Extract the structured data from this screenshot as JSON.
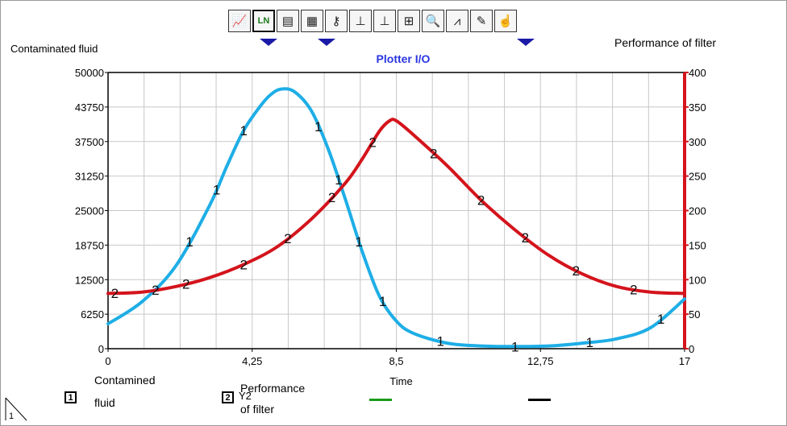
{
  "toolbar": {
    "buttons": [
      {
        "icon": "line-chart-icon",
        "glyph": "📈"
      },
      {
        "icon": "ln-scale-icon",
        "glyph": "LN"
      },
      {
        "icon": "legend-icon",
        "glyph": "▤"
      },
      {
        "icon": "grid-icon",
        "glyph": "▦"
      },
      {
        "icon": "key-icon",
        "glyph": "⚷"
      },
      {
        "icon": "x-axis-icon",
        "glyph": "⊥"
      },
      {
        "icon": "y-axis-icon",
        "glyph": "⊥"
      },
      {
        "icon": "xy-axis-icon",
        "glyph": "⊞"
      },
      {
        "icon": "zoom-icon",
        "glyph": "🔍"
      },
      {
        "icon": "compass-icon",
        "glyph": "⩘"
      },
      {
        "icon": "pencil-icon",
        "glyph": "✎"
      },
      {
        "icon": "hand-icon",
        "glyph": "☝"
      }
    ]
  },
  "labels": {
    "left_axis_title": "Contaminated fluid",
    "right_axis_title": "Performance of filter"
  },
  "legend": {
    "items": [
      {
        "number": "1",
        "label_line1": "Contamined",
        "label_line2": "fluid",
        "color": "#1eaee6"
      },
      {
        "number": "2",
        "label_line1": "Performance",
        "label_line2": "of filter",
        "overlay": "Y2",
        "color": "#d4141c"
      }
    ]
  },
  "corner_marker": "1",
  "chart_data": {
    "type": "line",
    "title": "Plotter I/O",
    "xlabel": "Time",
    "ylabel": "Contaminated fluid",
    "y2label": "Performance of filter",
    "xlim": [
      0,
      17
    ],
    "ylim": [
      0,
      50000
    ],
    "y2lim": [
      0,
      400
    ],
    "x_ticks": [
      "0",
      "4,25",
      "8,5",
      "12,75",
      "17"
    ],
    "y_ticks": [
      "0",
      "6250",
      "12500",
      "18750",
      "25000",
      "31250",
      "37500",
      "43750",
      "50000"
    ],
    "y2_ticks": [
      "0",
      "50",
      "100",
      "150",
      "200",
      "250",
      "300",
      "350",
      "400"
    ],
    "grid": true,
    "series": [
      {
        "name": "Contamined fluid",
        "axis": "left",
        "color": "#1eaee6",
        "marker": "1",
        "x": [
          0,
          1,
          2,
          3,
          3.5,
          4,
          4.5,
          4.8,
          5.1,
          5.5,
          6,
          6.5,
          7,
          7.5,
          8,
          8.5,
          9,
          10,
          11,
          12,
          13,
          14,
          15,
          16,
          17
        ],
        "y": [
          4500,
          8500,
          15000,
          26000,
          33000,
          39500,
          44000,
          46000,
          47000,
          46500,
          43000,
          36000,
          27000,
          17500,
          9500,
          5000,
          2800,
          1000,
          500,
          400,
          500,
          1000,
          1800,
          3800,
          9000
        ]
      },
      {
        "name": "Performance of filter",
        "axis": "right",
        "color": "#d4141c",
        "marker": "2",
        "x": [
          0,
          1,
          2,
          3,
          4,
          5,
          6,
          7,
          7.5,
          8,
          8.3,
          8.5,
          9,
          10,
          11,
          12,
          13,
          14,
          15,
          16,
          17
        ],
        "y": [
          80,
          82,
          90,
          103,
          122,
          148,
          188,
          240,
          275,
          315,
          330,
          330,
          310,
          265,
          215,
          172,
          135,
          108,
          90,
          82,
          80
        ]
      }
    ],
    "series_marker_x": {
      "1": [
        2.4,
        3.2,
        4.0,
        6.2,
        6.8,
        7.4,
        8.1,
        9.8,
        12.0,
        14.2,
        16.3
      ],
      "2": [
        0.2,
        1.4,
        2.3,
        4.0,
        5.3,
        6.6,
        7.8,
        9.6,
        11.0,
        12.3,
        13.8,
        15.5
      ]
    }
  }
}
